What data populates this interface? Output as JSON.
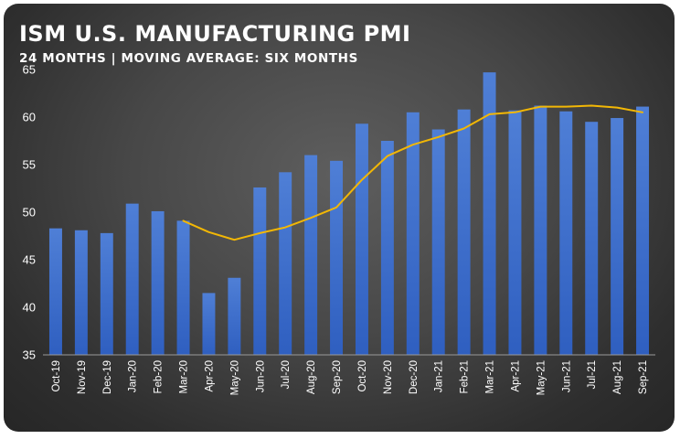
{
  "title": "ISM U.S. MANUFACTURING PMI",
  "subtitle": "24 MONTHS | MOVING AVERAGE: SIX MONTHS",
  "colors": {
    "bar": "#4f7fd6",
    "bar_dark": "#2f5fc0",
    "line": "#f2b705",
    "text": "#ffffff",
    "axis": "#9a9a9a"
  },
  "chart_data": {
    "type": "bar",
    "title": "ISM U.S. MANUFACTURING PMI",
    "subtitle": "24 MONTHS | MOVING AVERAGE: SIX MONTHS",
    "xlabel": "",
    "ylabel": "",
    "ylim": [
      35,
      65
    ],
    "yticks": [
      35,
      40,
      45,
      50,
      55,
      60,
      65
    ],
    "grid": false,
    "legend": "none",
    "categories": [
      "Oct-19",
      "Nov-19",
      "Dec-19",
      "Jan-20",
      "Feb-20",
      "Mar-20",
      "Apr-20",
      "May-20",
      "Jun-20",
      "Jul-20",
      "Aug-20",
      "Sep-20",
      "Oct-20",
      "Nov-20",
      "Dec-20",
      "Jan-21",
      "Feb-21",
      "Mar-21",
      "Apr-21",
      "May-21",
      "Jun-21",
      "Jul-21",
      "Aug-21",
      "Sep-21"
    ],
    "series": [
      {
        "type": "bar",
        "values": [
          48.3,
          48.1,
          47.8,
          50.9,
          50.1,
          49.1,
          41.5,
          43.1,
          52.6,
          54.2,
          56.0,
          55.4,
          59.3,
          57.5,
          60.5,
          58.7,
          60.8,
          64.7,
          60.7,
          61.2,
          60.6,
          59.5,
          59.9,
          61.1
        ]
      },
      {
        "type": "line",
        "values": [
          null,
          null,
          null,
          null,
          null,
          49.1,
          47.9,
          47.1,
          47.8,
          48.4,
          49.4,
          50.5,
          53.4,
          55.9,
          57.1,
          57.9,
          58.8,
          60.3,
          60.5,
          61.1,
          61.1,
          61.2,
          61.0,
          60.5
        ]
      }
    ]
  }
}
